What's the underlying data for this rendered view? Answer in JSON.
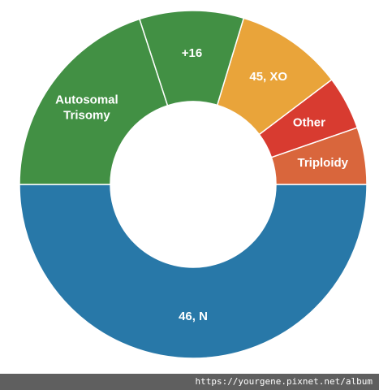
{
  "chart_data": {
    "type": "pie",
    "donut": true,
    "title": "",
    "slices": [
      {
        "label": "46, N",
        "value": 50.0,
        "color": "#2878a8"
      },
      {
        "label": "Triploidy",
        "value": 5.3,
        "color": "#d9663c"
      },
      {
        "label": "Other",
        "value": 5.0,
        "color": "#d83b30"
      },
      {
        "label": "45, XO",
        "value": 10.0,
        "color": "#e9a43a"
      },
      {
        "label": "+16",
        "value": 9.7,
        "color": "#429044"
      },
      {
        "label": "Autosomal Trisomy",
        "value": 20.0,
        "color": "#429044"
      }
    ]
  },
  "watermark": {
    "text": "https://yourgene.pixnet.net/album"
  }
}
